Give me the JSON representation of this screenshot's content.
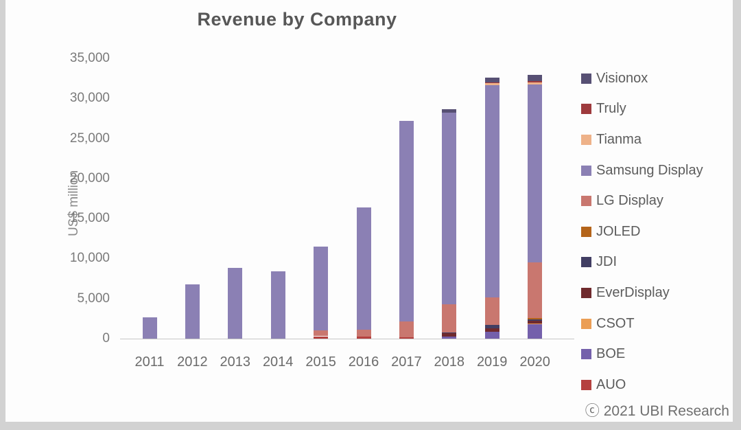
{
  "title": "Revenue by Company",
  "y_axis_title": "US$ million",
  "footer": {
    "copyright_symbol": "ⓒ",
    "text": "2021 UBI Research"
  },
  "colors": {
    "background_frame": "#d2d2d2",
    "panel": "#fdfdfd",
    "title_text": "#575757",
    "tick_text": "#7a7a7a"
  },
  "chart_data": {
    "type": "bar",
    "stacked": true,
    "title": "Revenue by Company",
    "xlabel": "",
    "ylabel": "US$ million",
    "ylim": [
      0,
      35000
    ],
    "ytick_step": 5000,
    "ytick_labels": [
      "0",
      "5,000",
      "10,000",
      "15,000",
      "20,000",
      "25,000",
      "30,000",
      "35,000"
    ],
    "grid": false,
    "legend_position": "right",
    "legend_order_top_to_bottom": [
      "Visionox",
      "Truly",
      "Tianma",
      "Samsung Display",
      "LG Display",
      "JOLED",
      "JDI",
      "EverDisplay",
      "CSOT",
      "BOE",
      "AUO"
    ],
    "categories": [
      "2011",
      "2012",
      "2013",
      "2014",
      "2015",
      "2016",
      "2017",
      "2018",
      "2019",
      "2020"
    ],
    "series": [
      {
        "name": "AUO",
        "color": "#b5413f",
        "values": [
          0,
          0,
          0,
          0,
          300,
          250,
          200,
          0,
          0,
          0
        ]
      },
      {
        "name": "BOE",
        "color": "#7460ab",
        "values": [
          0,
          0,
          0,
          0,
          0,
          0,
          0,
          250,
          900,
          1800
        ]
      },
      {
        "name": "CSOT",
        "color": "#eb9e55",
        "values": [
          0,
          0,
          0,
          0,
          0,
          0,
          0,
          0,
          0,
          100
        ]
      },
      {
        "name": "EverDisplay",
        "color": "#6f2a2d",
        "values": [
          0,
          0,
          0,
          0,
          0,
          0,
          0,
          400,
          400,
          300
        ]
      },
      {
        "name": "JDI",
        "color": "#413e63",
        "values": [
          0,
          0,
          0,
          0,
          0,
          0,
          0,
          100,
          450,
          200
        ]
      },
      {
        "name": "JOLED",
        "color": "#b4641a",
        "values": [
          0,
          0,
          0,
          0,
          0,
          0,
          0,
          0,
          0,
          200
        ]
      },
      {
        "name": "LG Display",
        "color": "#c9776f",
        "values": [
          0,
          0,
          0,
          0,
          700,
          900,
          1950,
          3550,
          3400,
          6900
        ]
      },
      {
        "name": "Samsung Display",
        "color": "#8b80b4",
        "values": [
          2650,
          6800,
          8800,
          8400,
          10500,
          15250,
          25050,
          23900,
          26500,
          22200
        ]
      },
      {
        "name": "Tianma",
        "color": "#eeb289",
        "values": [
          0,
          0,
          0,
          0,
          0,
          0,
          0,
          0,
          250,
          300
        ]
      },
      {
        "name": "Truly",
        "color": "#9e3a3d",
        "values": [
          0,
          0,
          0,
          0,
          0,
          0,
          0,
          0,
          100,
          200
        ]
      },
      {
        "name": "Visionox",
        "color": "#575074",
        "values": [
          0,
          0,
          0,
          0,
          0,
          0,
          0,
          450,
          600,
          700
        ]
      }
    ],
    "totals": [
      2650,
      6800,
      8800,
      8400,
      11500,
      16400,
      27200,
      28650,
      32600,
      32900
    ]
  }
}
